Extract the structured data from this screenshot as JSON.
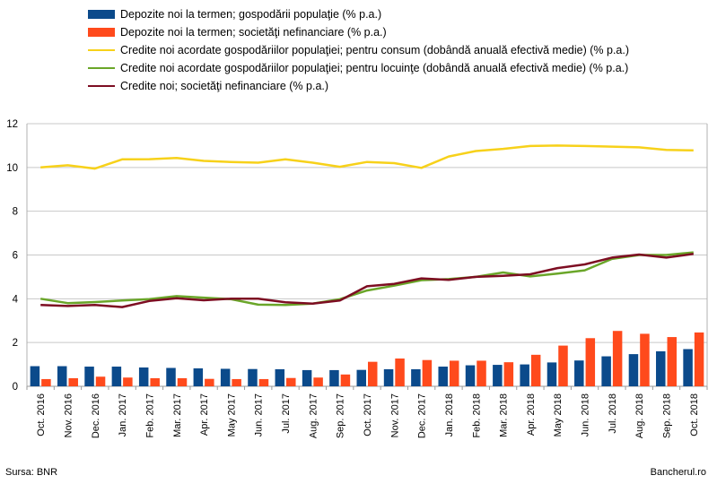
{
  "chart_data": {
    "type": "bar",
    "categories": [
      "Oct. 2016",
      "Nov. 2016",
      "Dec. 2016",
      "Jan. 2017",
      "Feb. 2017",
      "Mar. 2017",
      "Apr. 2017",
      "May 2017",
      "Jun. 2017",
      "Jul. 2017",
      "Aug. 2017",
      "Sep. 2017",
      "Oct. 2017",
      "Nov. 2017",
      "Dec. 2017",
      "Jan. 2018",
      "Feb. 2018",
      "Mar. 2018",
      "Apr. 2018",
      "May 2018",
      "Jun. 2018",
      "Jul. 2018",
      "Aug. 2018",
      "Sep. 2018",
      "Oct. 2018"
    ],
    "ylim": [
      0,
      12
    ],
    "yticks": [
      0,
      2,
      4,
      6,
      8,
      10,
      12
    ],
    "grid": true,
    "legend_position": "top",
    "bar_series": [
      {
        "name": "Depozite noi la termen; gospodării populaţie (% p.a.)",
        "color": "#0b4a8b",
        "values": [
          0.92,
          0.92,
          0.9,
          0.9,
          0.86,
          0.84,
          0.82,
          0.8,
          0.79,
          0.78,
          0.74,
          0.74,
          0.75,
          0.78,
          0.78,
          0.9,
          0.96,
          0.98,
          1.0,
          1.09,
          1.18,
          1.37,
          1.47,
          1.6,
          1.7
        ]
      },
      {
        "name": "Depozite noi la termen; societăţi nefinanciare (% p.a.)",
        "color": "#ff4a1c",
        "values": [
          0.33,
          0.37,
          0.44,
          0.4,
          0.37,
          0.37,
          0.34,
          0.33,
          0.33,
          0.38,
          0.4,
          0.54,
          1.12,
          1.27,
          1.2,
          1.17,
          1.17,
          1.1,
          1.44,
          1.86,
          2.2,
          2.53,
          2.4,
          2.25,
          2.46
        ]
      }
    ],
    "line_series": [
      {
        "name": "Credite noi acordate gospodăriilor populaţiei; pentru consum (dobândă anuală efectivă medie) (% p.a.)",
        "color": "#f7d11a",
        "values": [
          10.0,
          10.1,
          9.95,
          10.37,
          10.38,
          10.43,
          10.3,
          10.25,
          10.22,
          10.37,
          10.22,
          10.03,
          10.25,
          10.2,
          9.98,
          10.5,
          10.75,
          10.85,
          10.98,
          11.0,
          10.98,
          10.95,
          10.92,
          10.8,
          10.78
        ]
      },
      {
        "name": "Credite noi acordate gospodăriilor populaţiei; pentru locuinţe (dobândă anuală efectivă medie) (% p.a.)",
        "color": "#6aa629",
        "values": [
          4.0,
          3.8,
          3.85,
          3.92,
          3.98,
          4.12,
          4.05,
          3.98,
          3.73,
          3.72,
          3.78,
          3.98,
          4.38,
          4.6,
          4.85,
          4.9,
          5.0,
          5.2,
          5.02,
          5.15,
          5.3,
          5.82,
          6.0,
          6.0,
          6.12
        ]
      },
      {
        "name": "Credite noi; societăţi nefinanciare (% p.a.)",
        "color": "#7d0d22",
        "values": [
          3.72,
          3.67,
          3.72,
          3.62,
          3.9,
          4.02,
          3.93,
          4.0,
          4.0,
          3.84,
          3.78,
          3.92,
          4.57,
          4.68,
          4.93,
          4.86,
          5.0,
          5.05,
          5.12,
          5.4,
          5.57,
          5.88,
          6.02,
          5.88,
          6.05
        ]
      }
    ]
  },
  "footer": {
    "source": "Sursa: BNR",
    "brand": "Bancherul.ro"
  }
}
